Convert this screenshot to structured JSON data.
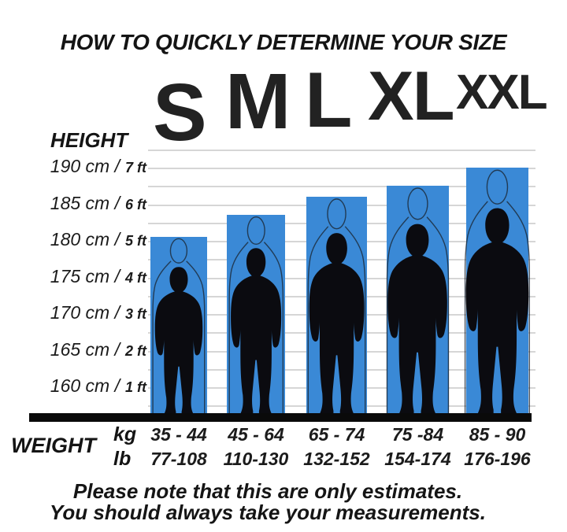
{
  "title": "HOW TO QUICKLY DETERMINE YOUR SIZE",
  "height_axis": {
    "label": "HEIGHT",
    "ticks": [
      {
        "cm": "190 cm /",
        "ft": "7 ft"
      },
      {
        "cm": "185 cm /",
        "ft": "6 ft"
      },
      {
        "cm": "180 cm /",
        "ft": "5 ft"
      },
      {
        "cm": "175 cm /",
        "ft": "4 ft"
      },
      {
        "cm": "170 cm /",
        "ft": "3 ft"
      },
      {
        "cm": "165 cm /",
        "ft": "2 ft"
      },
      {
        "cm": "160 cm /",
        "ft": "1 ft"
      }
    ]
  },
  "sizes": [
    {
      "label": "S",
      "kg": "35 - 44",
      "lb": "77-108"
    },
    {
      "label": "M",
      "kg": "45 - 64",
      "lb": "110-130"
    },
    {
      "label": "L",
      "kg": "65 - 74",
      "lb": "132-152"
    },
    {
      "label": "XL",
      "kg": "75 -84",
      "lb": "154-174"
    },
    {
      "label": "XXL",
      "kg": "85 - 90",
      "lb": "176-196"
    }
  ],
  "weight": {
    "label": "WEIGHT",
    "kg_unit": "kg",
    "lb_unit": "lb"
  },
  "footer": {
    "line1": "Please note that this are only estimates.",
    "line2": "You should always take your measurements."
  },
  "colors": {
    "bar_blue": "#3a89d6",
    "silhouette": "#0b0b10",
    "ghost_outline": "#1c2836",
    "gridline": "#d6d6d6",
    "baseline": "#0a0a0a"
  },
  "chart_data": {
    "type": "bar",
    "title": "HOW TO QUICKLY DETERMINE YOUR SIZE",
    "categories": [
      "S",
      "M",
      "L",
      "XL",
      "XXL"
    ],
    "series": [
      {
        "name": "bar_top_height_cm",
        "values": [
          180.5,
          183.5,
          186,
          187.5,
          190
        ]
      },
      {
        "name": "weight_kg_range",
        "values": [
          "35 - 44",
          "45 - 64",
          "65 - 74",
          "75 -84",
          "85 - 90"
        ]
      },
      {
        "name": "weight_lb_range",
        "values": [
          "77-108",
          "110-130",
          "132-152",
          "154-174",
          "176-196"
        ]
      }
    ],
    "ylabel": "HEIGHT",
    "xlabel": "WEIGHT",
    "y_ticks": [
      "190 cm / 7 ft",
      "185 cm / 6 ft",
      "180 cm / 5 ft",
      "175 cm / 4 ft",
      "170 cm / 3 ft",
      "165 cm / 2 ft",
      "160 cm / 1 ft"
    ],
    "ylim": [
      160,
      190
    ],
    "grid": true,
    "legend": "none",
    "note": "Each bar shows a blue column with a human silhouette; bar top marks the max height for that size."
  }
}
